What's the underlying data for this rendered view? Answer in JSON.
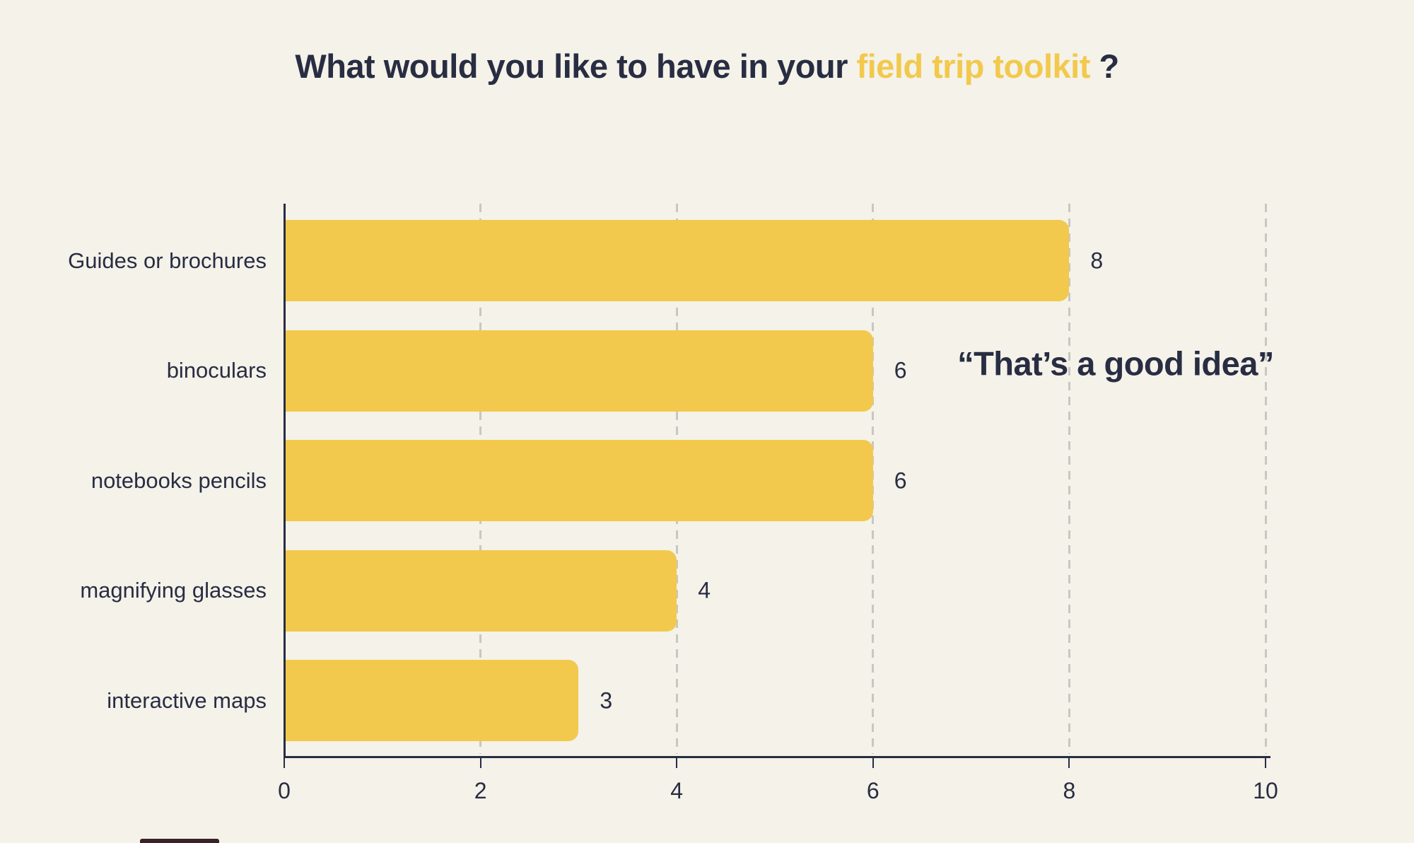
{
  "title": {
    "prefix": "What would you like to have in your ",
    "highlight": "field trip toolkit",
    "suffix": " ?"
  },
  "annotation": {
    "text": "“That’s a good idea”"
  },
  "colors": {
    "background": "#F4F2E9",
    "bar": "#F2C94D",
    "text_navy": "#282D42",
    "title_highlight": "#F2C94D",
    "gridline": "#C8C7C1"
  },
  "chart_data": {
    "type": "bar",
    "orientation": "horizontal",
    "title": "What would you like to have in your field trip toolkit ?",
    "categories": [
      "Guides or brochures",
      "binoculars",
      "notebooks pencils",
      "magnifying glasses",
      "interactive maps"
    ],
    "values": [
      8,
      6,
      6,
      4,
      3
    ],
    "xlabel": "",
    "ylabel": "",
    "xlim": [
      0,
      10
    ],
    "x_ticks": [
      0,
      2,
      4,
      6,
      8,
      10
    ],
    "grid": "vertical-dashed",
    "legend": "none",
    "annotation": "“That’s a good idea”",
    "value_labels_shown": true
  }
}
